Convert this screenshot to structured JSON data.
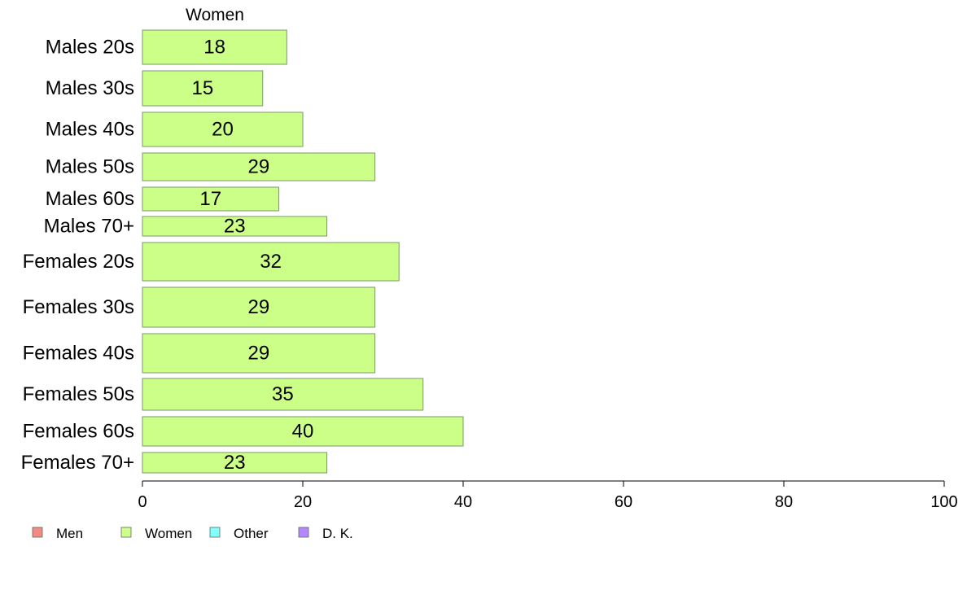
{
  "chart_data": {
    "type": "bar",
    "orientation": "horizontal",
    "panel_title": "Women",
    "categories": [
      "Males 20s",
      "Males 30s",
      "Males 40s",
      "Males 50s",
      "Males 60s",
      "Males 70+",
      "Females 20s",
      "Females 30s",
      "Females 40s",
      "Females 50s",
      "Females 60s",
      "Females 70+"
    ],
    "values": [
      18,
      15,
      20,
      29,
      17,
      23,
      32,
      29,
      29,
      35,
      40,
      23
    ],
    "value_labels": [
      "18",
      "15",
      "20",
      "29",
      "17",
      "23",
      "32",
      "29",
      "29",
      "35",
      "40",
      "23"
    ],
    "xlim": [
      0,
      100
    ],
    "x_ticks": [
      0,
      20,
      40,
      60,
      80,
      100
    ],
    "x_tick_labels": [
      "0",
      "20",
      "40",
      "60",
      "80",
      "100"
    ],
    "grid": false,
    "legend_position": "bottom-left",
    "legend": [
      {
        "name": "Men",
        "color": "#f28b82"
      },
      {
        "name": "Women",
        "color": "#ccff88"
      },
      {
        "name": "Other",
        "color": "#80ffff"
      },
      {
        "name": "D. K.",
        "color": "#b388ff"
      }
    ],
    "bar_color": "#ccff88",
    "bar_stroke": "#7a9a6a"
  }
}
